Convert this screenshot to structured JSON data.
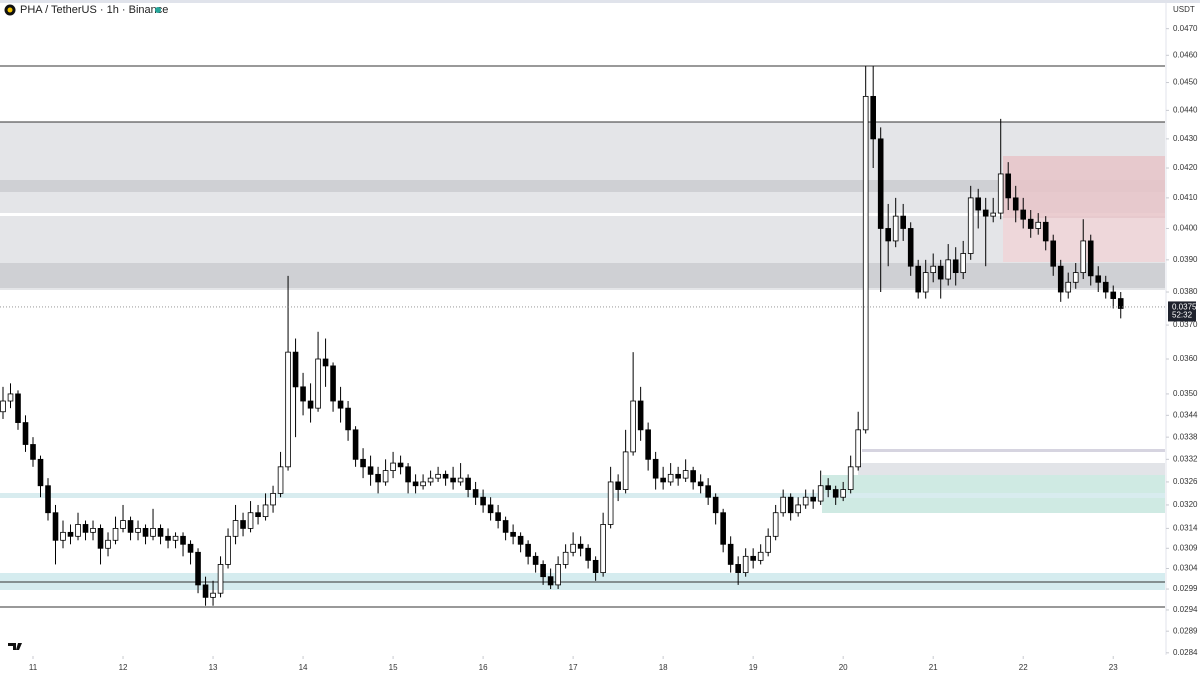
{
  "chart_data": {
    "type": "candlestick",
    "title": "PHA / TetherUS · 1h · Binance",
    "y_axis_label": "USDT",
    "log_scale": true,
    "grid": false,
    "up_color": "#ffffff",
    "down_color": "#000000",
    "wick_color": "#000000",
    "xlim": [
      -0.4,
      154.9
    ],
    "ylim": [
      0.02835,
      0.0481
    ],
    "xticks": [
      {
        "value": 4,
        "label": "11"
      },
      {
        "value": 16,
        "label": "12"
      },
      {
        "value": 28,
        "label": "13"
      },
      {
        "value": 40,
        "label": "14"
      },
      {
        "value": 52,
        "label": "15"
      },
      {
        "value": 64,
        "label": "16"
      },
      {
        "value": 76,
        "label": "17"
      },
      {
        "value": 88,
        "label": "18"
      },
      {
        "value": 100,
        "label": "19"
      },
      {
        "value": 112,
        "label": "20"
      },
      {
        "value": 124,
        "label": "21"
      },
      {
        "value": 136,
        "label": "22"
      },
      {
        "value": 148,
        "label": "23"
      }
    ],
    "yticks": [
      {
        "value": 0.047,
        "label": "0.0470"
      },
      {
        "value": 0.046,
        "label": "0.0460"
      },
      {
        "value": 0.045,
        "label": "0.0450"
      },
      {
        "value": 0.044,
        "label": "0.0440"
      },
      {
        "value": 0.043,
        "label": "0.0430"
      },
      {
        "value": 0.042,
        "label": "0.0420"
      },
      {
        "value": 0.041,
        "label": "0.0410"
      },
      {
        "value": 0.04,
        "label": "0.0400"
      },
      {
        "value": 0.039,
        "label": "0.0390"
      },
      {
        "value": 0.038,
        "label": "0.0380"
      },
      {
        "value": 0.037,
        "label": "0.0370"
      },
      {
        "value": 0.036,
        "label": "0.0360"
      },
      {
        "value": 0.035,
        "label": "0.0350"
      },
      0.0344,
      0.0338,
      0.0332,
      0.0326,
      {
        "value": 0.032,
        "label": "0.0320"
      },
      0.0314,
      0.0309,
      0.0304,
      0.0299,
      0.0294,
      0.0289,
      0.0284
    ],
    "last_price": 0.0375,
    "countdown": "52:32",
    "ohlc": [
      [
        0.0345,
        0.0352,
        0.0343,
        0.0348
      ],
      [
        0.0348,
        0.0353,
        0.0346,
        0.035
      ],
      [
        0.035,
        0.0351,
        0.034,
        0.0342
      ],
      [
        0.0342,
        0.0344,
        0.0334,
        0.0336
      ],
      [
        0.0336,
        0.0338,
        0.033,
        0.0332
      ],
      [
        0.0332,
        0.0333,
        0.0322,
        0.0325
      ],
      [
        0.0325,
        0.0327,
        0.0316,
        0.0318
      ],
      [
        0.0318,
        0.032,
        0.0305,
        0.0311
      ],
      [
        0.0311,
        0.0316,
        0.0309,
        0.0313
      ],
      [
        0.0313,
        0.0315,
        0.031,
        0.0312
      ],
      [
        0.0312,
        0.0318,
        0.0311,
        0.0315
      ],
      [
        0.0315,
        0.0316,
        0.0311,
        0.0313
      ],
      [
        0.0313,
        0.0316,
        0.0311,
        0.0314
      ],
      [
        0.0314,
        0.0315,
        0.0305,
        0.0309
      ],
      [
        0.0309,
        0.0313,
        0.0307,
        0.0311
      ],
      [
        0.0311,
        0.0317,
        0.031,
        0.0314
      ],
      [
        0.0314,
        0.032,
        0.0313,
        0.0316
      ],
      [
        0.0316,
        0.0317,
        0.0311,
        0.0313
      ],
      [
        0.0313,
        0.0316,
        0.0311,
        0.0314
      ],
      [
        0.0314,
        0.0315,
        0.031,
        0.0312
      ],
      [
        0.0312,
        0.0319,
        0.0311,
        0.0314
      ],
      [
        0.0314,
        0.0315,
        0.031,
        0.0312
      ],
      [
        0.0312,
        0.0314,
        0.0309,
        0.0311
      ],
      [
        0.0311,
        0.0313,
        0.0309,
        0.0312
      ],
      [
        0.0312,
        0.0313,
        0.0307,
        0.031
      ],
      [
        0.031,
        0.0311,
        0.0305,
        0.0308
      ],
      [
        0.0308,
        0.0309,
        0.0298,
        0.03
      ],
      [
        0.03,
        0.0302,
        0.0295,
        0.0297
      ],
      [
        0.0297,
        0.0301,
        0.0295,
        0.0298
      ],
      [
        0.0298,
        0.0307,
        0.0297,
        0.0305
      ],
      [
        0.0305,
        0.0314,
        0.0304,
        0.0312
      ],
      [
        0.0312,
        0.032,
        0.031,
        0.0316
      ],
      [
        0.0316,
        0.0318,
        0.0312,
        0.0314
      ],
      [
        0.0314,
        0.0321,
        0.0313,
        0.0318
      ],
      [
        0.0318,
        0.032,
        0.0315,
        0.0317
      ],
      [
        0.0317,
        0.0323,
        0.0316,
        0.032
      ],
      [
        0.032,
        0.0325,
        0.0318,
        0.0323
      ],
      [
        0.0323,
        0.0334,
        0.0322,
        0.033
      ],
      [
        0.033,
        0.0385,
        0.0329,
        0.0362
      ],
      [
        0.0362,
        0.0366,
        0.0338,
        0.0352
      ],
      [
        0.0352,
        0.0356,
        0.0344,
        0.0348
      ],
      [
        0.0348,
        0.0353,
        0.0342,
        0.0346
      ],
      [
        0.0346,
        0.0368,
        0.0345,
        0.036
      ],
      [
        0.036,
        0.0366,
        0.0352,
        0.0358
      ],
      [
        0.0358,
        0.0359,
        0.0345,
        0.0348
      ],
      [
        0.0348,
        0.0352,
        0.0342,
        0.0346
      ],
      [
        0.0346,
        0.0348,
        0.0337,
        0.034
      ],
      [
        0.034,
        0.0341,
        0.033,
        0.0332
      ],
      [
        0.0332,
        0.0335,
        0.0327,
        0.033
      ],
      [
        0.033,
        0.0333,
        0.0325,
        0.0328
      ],
      [
        0.0328,
        0.033,
        0.0323,
        0.0326
      ],
      [
        0.0326,
        0.0332,
        0.0325,
        0.0329
      ],
      [
        0.0329,
        0.0334,
        0.0327,
        0.0331
      ],
      [
        0.0331,
        0.0333,
        0.0328,
        0.033
      ],
      [
        0.033,
        0.0331,
        0.0323,
        0.0326
      ],
      [
        0.0326,
        0.0328,
        0.0323,
        0.0325
      ],
      [
        0.0325,
        0.0328,
        0.0324,
        0.0326
      ],
      [
        0.0326,
        0.0329,
        0.0325,
        0.0327
      ],
      [
        0.0327,
        0.033,
        0.0326,
        0.0328
      ],
      [
        0.0328,
        0.0329,
        0.0325,
        0.0327
      ],
      [
        0.0327,
        0.033,
        0.0324,
        0.0326
      ],
      [
        0.0326,
        0.0331,
        0.0325,
        0.0327
      ],
      [
        0.0327,
        0.0328,
        0.0322,
        0.0324
      ],
      [
        0.0324,
        0.0326,
        0.032,
        0.0322
      ],
      [
        0.0322,
        0.0324,
        0.0318,
        0.032
      ],
      [
        0.032,
        0.0322,
        0.0316,
        0.0318
      ],
      [
        0.0318,
        0.032,
        0.0314,
        0.0316
      ],
      [
        0.0316,
        0.0317,
        0.0311,
        0.0313
      ],
      [
        0.0313,
        0.0315,
        0.031,
        0.0312
      ],
      [
        0.0312,
        0.0313,
        0.0308,
        0.031
      ],
      [
        0.031,
        0.0311,
        0.0305,
        0.0307
      ],
      [
        0.0307,
        0.0308,
        0.0303,
        0.0305
      ],
      [
        0.0305,
        0.0306,
        0.03,
        0.0302
      ],
      [
        0.0302,
        0.0304,
        0.0299,
        0.03
      ],
      [
        0.03,
        0.0307,
        0.0299,
        0.0305
      ],
      [
        0.0305,
        0.031,
        0.0304,
        0.0308
      ],
      [
        0.0308,
        0.0313,
        0.0307,
        0.031
      ],
      [
        0.031,
        0.0312,
        0.0307,
        0.0309
      ],
      [
        0.0309,
        0.031,
        0.0304,
        0.0306
      ],
      [
        0.0306,
        0.0307,
        0.0301,
        0.0303
      ],
      [
        0.0303,
        0.0318,
        0.0302,
        0.0315
      ],
      [
        0.0315,
        0.033,
        0.0314,
        0.0326
      ],
      [
        0.0326,
        0.0328,
        0.0321,
        0.0324
      ],
      [
        0.0324,
        0.034,
        0.0323,
        0.0334
      ],
      [
        0.0334,
        0.0362,
        0.0333,
        0.0348
      ],
      [
        0.0348,
        0.0352,
        0.0337,
        0.034
      ],
      [
        0.034,
        0.0342,
        0.0329,
        0.0332
      ],
      [
        0.0332,
        0.0334,
        0.0324,
        0.0327
      ],
      [
        0.0327,
        0.033,
        0.0324,
        0.0326
      ],
      [
        0.0326,
        0.0331,
        0.0325,
        0.0328
      ],
      [
        0.0328,
        0.033,
        0.0325,
        0.0327
      ],
      [
        0.0327,
        0.0332,
        0.0326,
        0.0329
      ],
      [
        0.0329,
        0.033,
        0.0324,
        0.0326
      ],
      [
        0.0326,
        0.0328,
        0.0323,
        0.0325
      ],
      [
        0.0325,
        0.0327,
        0.032,
        0.0322
      ],
      [
        0.0322,
        0.0323,
        0.0315,
        0.0318
      ],
      [
        0.0318,
        0.0319,
        0.0308,
        0.031
      ],
      [
        0.031,
        0.0312,
        0.0303,
        0.0305
      ],
      [
        0.0305,
        0.0307,
        0.03,
        0.0303
      ],
      [
        0.0303,
        0.0309,
        0.0302,
        0.0307
      ],
      [
        0.0307,
        0.0309,
        0.0304,
        0.0306
      ],
      [
        0.0306,
        0.031,
        0.0305,
        0.0308
      ],
      [
        0.0308,
        0.0314,
        0.0307,
        0.0312
      ],
      [
        0.0312,
        0.032,
        0.0311,
        0.0318
      ],
      [
        0.0318,
        0.0324,
        0.0317,
        0.0322
      ],
      [
        0.0322,
        0.0323,
        0.0316,
        0.0318
      ],
      [
        0.0318,
        0.0322,
        0.0317,
        0.032
      ],
      [
        0.032,
        0.0324,
        0.0319,
        0.0322
      ],
      [
        0.0322,
        0.0324,
        0.0319,
        0.0321
      ],
      [
        0.0321,
        0.0329,
        0.032,
        0.0325
      ],
      [
        0.0325,
        0.0327,
        0.0322,
        0.0324
      ],
      [
        0.0324,
        0.0325,
        0.032,
        0.0322
      ],
      [
        0.0322,
        0.0326,
        0.0321,
        0.0324
      ],
      [
        0.0324,
        0.0333,
        0.0323,
        0.033
      ],
      [
        0.033,
        0.0345,
        0.0329,
        0.034
      ],
      [
        0.034,
        0.0456,
        0.0339,
        0.0445
      ],
      [
        0.0445,
        0.0456,
        0.042,
        0.043
      ],
      [
        0.043,
        0.0434,
        0.038,
        0.04
      ],
      [
        0.04,
        0.0408,
        0.0388,
        0.0396
      ],
      [
        0.0396,
        0.041,
        0.0394,
        0.0404
      ],
      [
        0.0404,
        0.0408,
        0.0396,
        0.04
      ],
      [
        0.04,
        0.0402,
        0.0385,
        0.0388
      ],
      [
        0.0388,
        0.039,
        0.0378,
        0.038
      ],
      [
        0.038,
        0.039,
        0.0378,
        0.0386
      ],
      [
        0.0386,
        0.0392,
        0.0383,
        0.0388
      ],
      [
        0.0388,
        0.039,
        0.0378,
        0.0384
      ],
      [
        0.0384,
        0.0395,
        0.0382,
        0.039
      ],
      [
        0.039,
        0.0394,
        0.0382,
        0.0386
      ],
      [
        0.0386,
        0.0396,
        0.0384,
        0.0392
      ],
      [
        0.0392,
        0.0414,
        0.039,
        0.041
      ],
      [
        0.041,
        0.0413,
        0.04,
        0.0406
      ],
      [
        0.0406,
        0.041,
        0.0388,
        0.0404
      ],
      [
        0.0404,
        0.041,
        0.0402,
        0.0405
      ],
      [
        0.0405,
        0.0437,
        0.0403,
        0.0418
      ],
      [
        0.0418,
        0.0422,
        0.0406,
        0.041
      ],
      [
        0.041,
        0.0414,
        0.0402,
        0.0406
      ],
      [
        0.0406,
        0.041,
        0.04,
        0.0403
      ],
      [
        0.0403,
        0.0406,
        0.0397,
        0.04
      ],
      [
        0.04,
        0.0405,
        0.0398,
        0.0402
      ],
      [
        0.0402,
        0.0404,
        0.0393,
        0.0396
      ],
      [
        0.0396,
        0.0398,
        0.0385,
        0.0388
      ],
      [
        0.0388,
        0.039,
        0.0377,
        0.038
      ],
      [
        0.038,
        0.0386,
        0.0378,
        0.0383
      ],
      [
        0.0383,
        0.0389,
        0.0381,
        0.0386
      ],
      [
        0.0386,
        0.0403,
        0.0384,
        0.0396
      ],
      [
        0.0396,
        0.0398,
        0.0382,
        0.0385
      ],
      [
        0.0385,
        0.0388,
        0.038,
        0.0383
      ],
      [
        0.0383,
        0.0385,
        0.0378,
        0.038
      ],
      [
        0.038,
        0.0382,
        0.0375,
        0.0378
      ],
      [
        0.0378,
        0.038,
        0.0372,
        0.0375
      ]
    ]
  }
}
